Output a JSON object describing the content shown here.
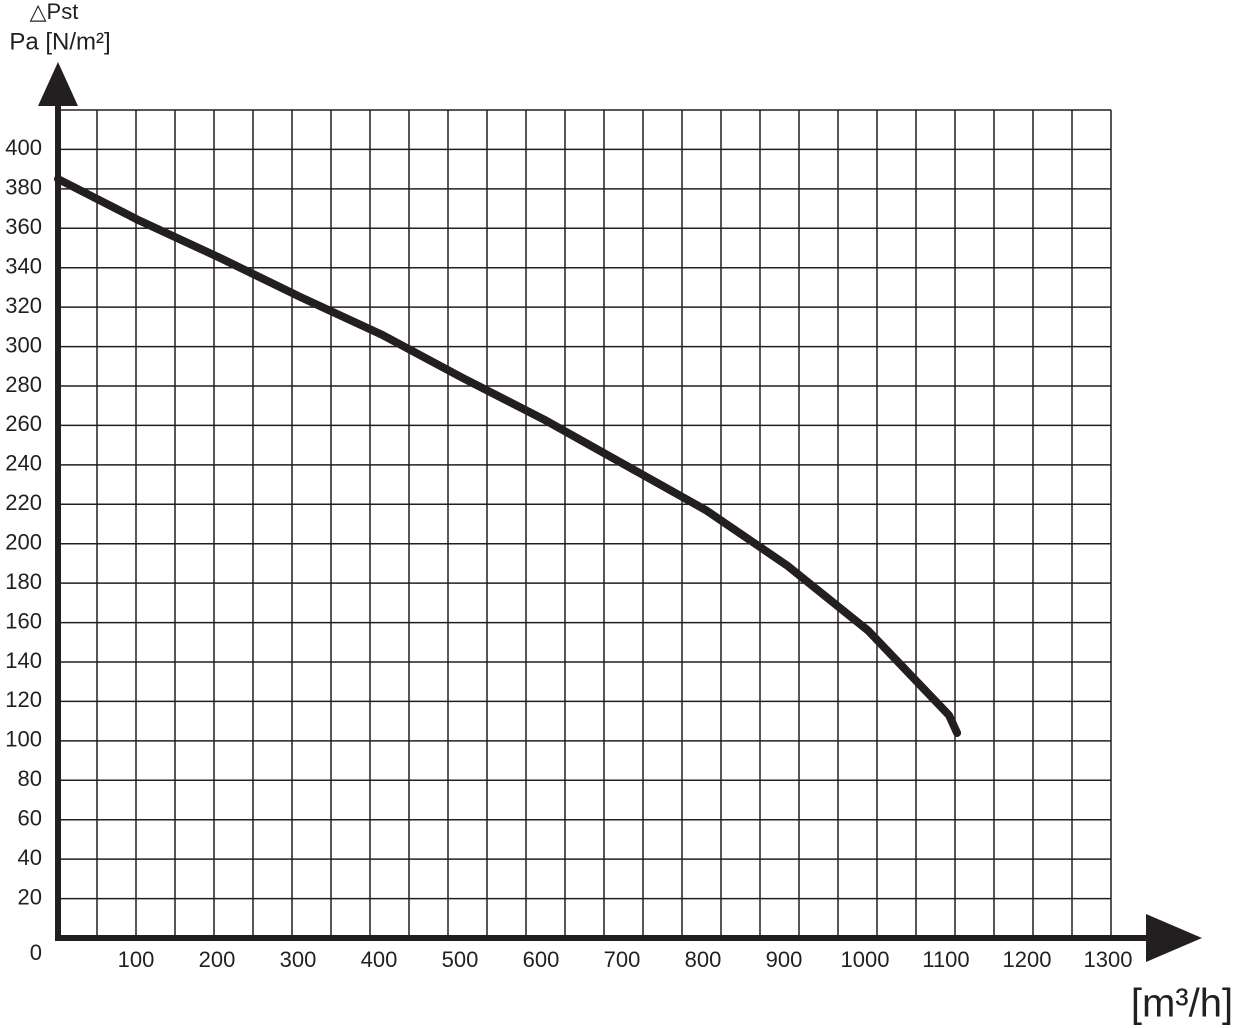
{
  "chart_data": {
    "type": "line",
    "y_label_top": "△Pst",
    "y_label": "Pa [N/m²]",
    "x_label": "[m³/h]",
    "x": [
      0,
      100,
      200,
      300,
      400,
      500,
      600,
      700,
      800,
      900,
      1000,
      1100,
      1110
    ],
    "series": [
      {
        "color": "#231f20",
        "values": [
          385,
          364,
          345,
          325,
          306,
          284,
          263,
          240,
          217,
          189,
          156,
          113,
          104
        ]
      }
    ],
    "xlim": [
      0,
      1300
    ],
    "xticks": [
      100,
      200,
      300,
      400,
      500,
      600,
      700,
      800,
      900,
      1000,
      1100,
      1200,
      1300
    ],
    "ylim": [
      0,
      420
    ],
    "yticks": [
      0,
      20,
      40,
      60,
      80,
      100,
      120,
      140,
      160,
      180,
      200,
      220,
      240,
      260,
      280,
      300,
      320,
      340,
      360,
      380,
      400
    ],
    "grid": true
  }
}
